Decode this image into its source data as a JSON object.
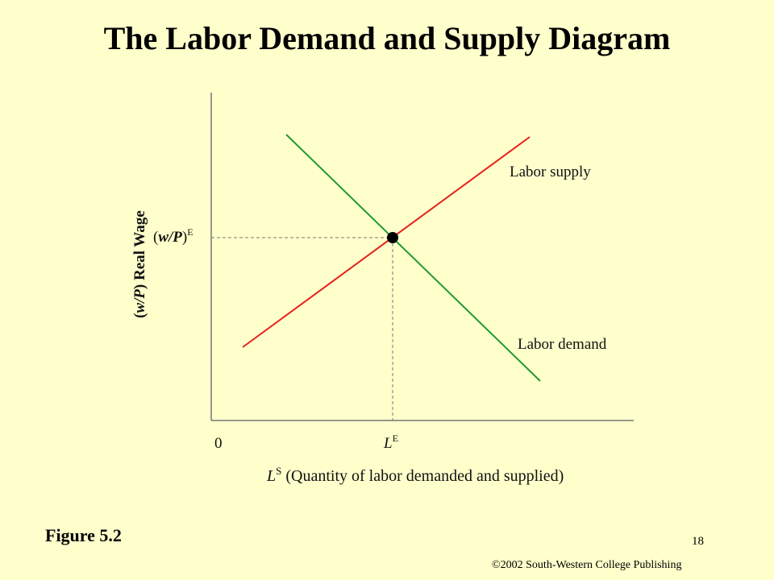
{
  "slide": {
    "title": "The Labor Demand and Supply Diagram",
    "figure_label": "Figure 5.2",
    "page_number": "18",
    "copyright": "©2002 South-Western College Publishing"
  },
  "diagram": {
    "y_axis_label": {
      "paren_open": "(",
      "var": "w/P",
      "paren_close": ")",
      "rest": " Real Wage"
    },
    "x_axis_label": {
      "var": "L",
      "sup": "S",
      "rest": " (Quantity of labor demanded and supplied)"
    },
    "origin_label": "0",
    "equilibrium_wage_label": {
      "paren_open": "(",
      "var": "w/P",
      "paren_close": ")",
      "sup": "E"
    },
    "equilibrium_quantity_label": {
      "var": "L",
      "sup": "E"
    },
    "supply_label": "Labor supply",
    "demand_label": "Labor demand",
    "colors": {
      "supply": "#e8201a",
      "demand": "#1f9a2e",
      "axis": "#777777",
      "guide": "#777777",
      "equilibrium_point": "#000000",
      "background": "#ffffcc"
    }
  }
}
